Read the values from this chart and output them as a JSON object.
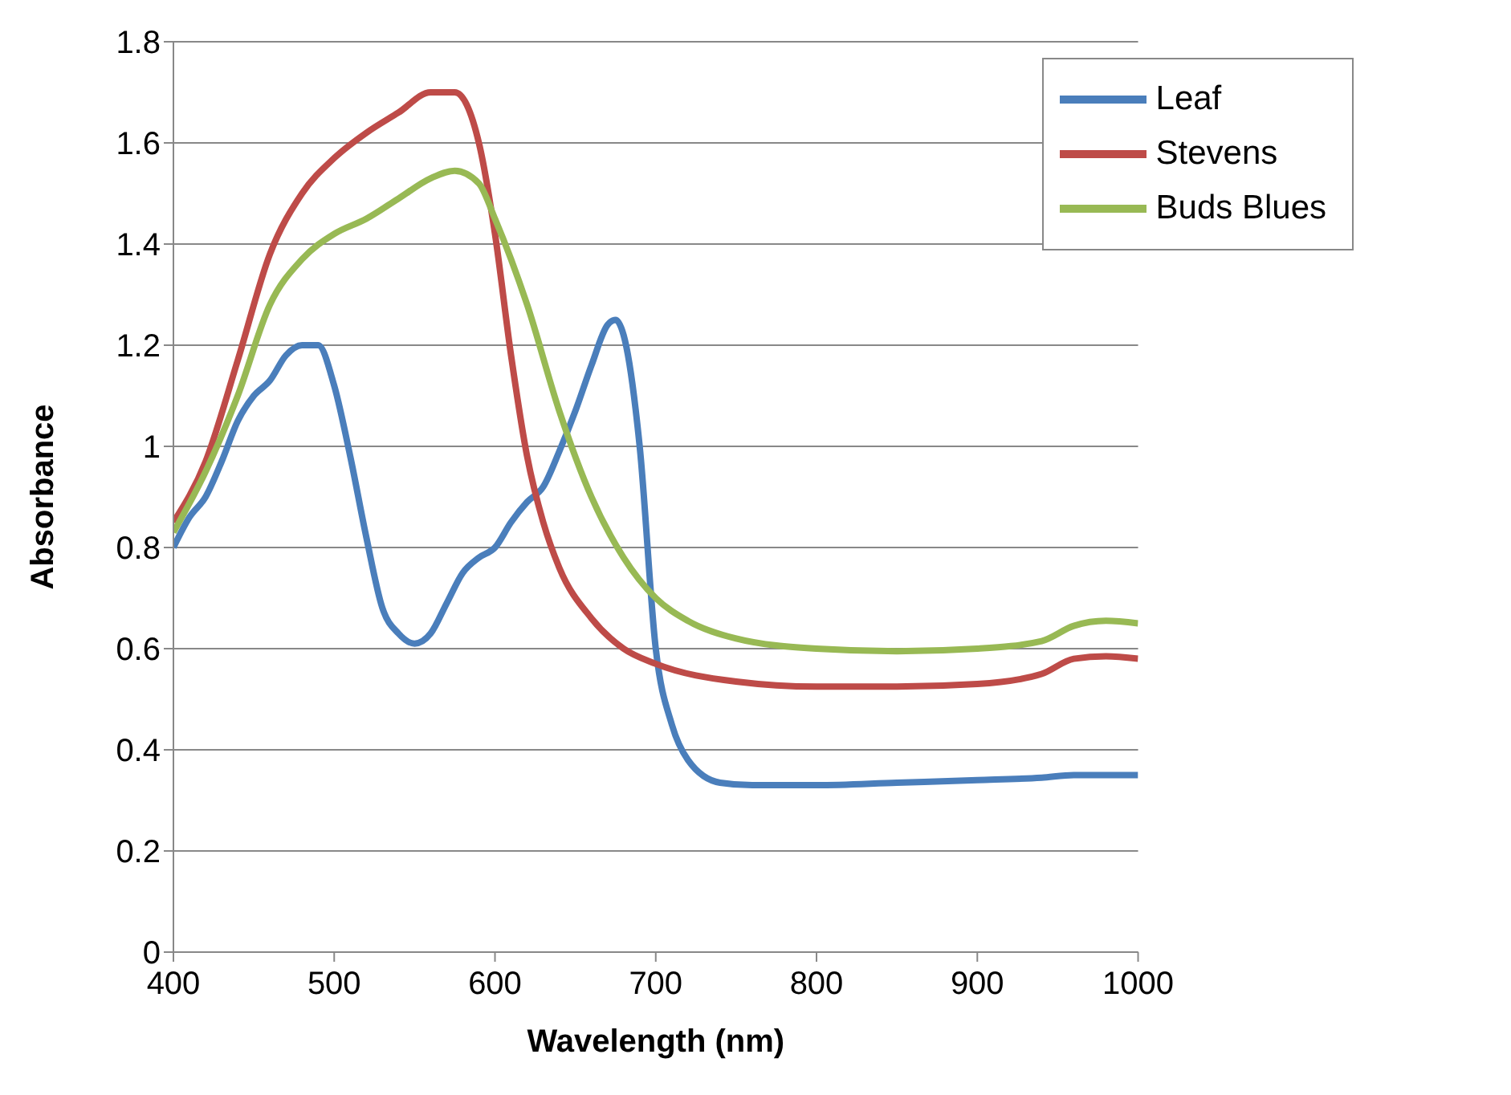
{
  "chart_data": {
    "type": "line",
    "xlabel": "Wavelength (nm)",
    "ylabel": "Absorbance",
    "xlim": [
      400,
      1000
    ],
    "xticks": [
      400,
      500,
      600,
      700,
      800,
      900,
      1000
    ],
    "ylim": [
      0,
      1.8
    ],
    "yticks": [
      0,
      0.2,
      0.4,
      0.6,
      0.8,
      1,
      1.2,
      1.4,
      1.6,
      1.8
    ],
    "grid": "y",
    "legend": "top right",
    "marker": "none",
    "line_style": "solid",
    "series": [
      {
        "name": "Leaf",
        "color": "#4a7ebb",
        "x": [
          400,
          410,
          420,
          430,
          440,
          450,
          460,
          470,
          480,
          490,
          500,
          510,
          520,
          530,
          540,
          550,
          560,
          570,
          580,
          590,
          600,
          610,
          620,
          630,
          640,
          650,
          660,
          670,
          675,
          680,
          690,
          700,
          710,
          720,
          740,
          760,
          800,
          850,
          900,
          940,
          960,
          1000
        ],
        "values": [
          0.8,
          0.86,
          0.9,
          0.97,
          1.05,
          1.1,
          1.13,
          1.18,
          1.2,
          1.2,
          1.12,
          0.98,
          0.82,
          0.68,
          0.63,
          0.61,
          0.63,
          0.69,
          0.75,
          0.78,
          0.8,
          0.85,
          0.89,
          0.92,
          0.99,
          1.07,
          1.16,
          1.24,
          1.25,
          1.22,
          1,
          0.6,
          0.45,
          0.38,
          0.335,
          0.33,
          0.33,
          0.335,
          0.34,
          0.345,
          0.35,
          0.35
        ]
      },
      {
        "name": "Stevens",
        "color": "#be4b48",
        "x": [
          400,
          420,
          440,
          460,
          480,
          500,
          520,
          540,
          560,
          575,
          590,
          600,
          610,
          620,
          630,
          640,
          660,
          680,
          700,
          750,
          800,
          850,
          900,
          940,
          960,
          980,
          1000
        ],
        "values": [
          0.85,
          0.97,
          1.17,
          1.38,
          1.5,
          1.57,
          1.62,
          1.66,
          1.7,
          1.7,
          1.6,
          1.42,
          1.18,
          0.98,
          0.85,
          0.76,
          0.66,
          0.6,
          0.57,
          0.535,
          0.525,
          0.525,
          0.53,
          0.55,
          0.58,
          0.585,
          0.58
        ]
      },
      {
        "name": "Buds Blues",
        "color": "#98b954",
        "x": [
          400,
          420,
          440,
          460,
          480,
          500,
          520,
          540,
          560,
          575,
          590,
          600,
          620,
          640,
          660,
          680,
          700,
          720,
          750,
          800,
          850,
          900,
          940,
          960,
          980,
          1000
        ],
        "values": [
          0.83,
          0.95,
          1.1,
          1.28,
          1.37,
          1.42,
          1.45,
          1.49,
          1.53,
          1.545,
          1.52,
          1.45,
          1.28,
          1.07,
          0.9,
          0.78,
          0.7,
          0.655,
          0.62,
          0.6,
          0.595,
          0.6,
          0.615,
          0.645,
          0.655,
          0.65
        ]
      }
    ]
  }
}
